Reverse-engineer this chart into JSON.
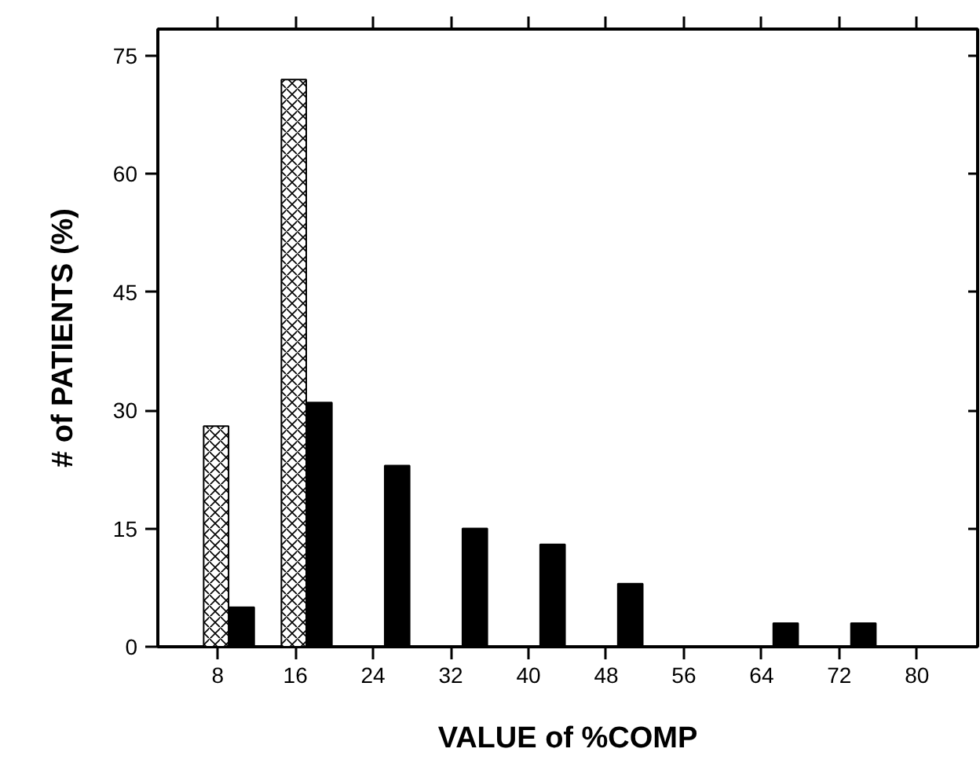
{
  "chart_data": {
    "type": "bar",
    "xlabel": "VALUE of %COMP",
    "ylabel": "# of PATIENTS (%)",
    "categories": [
      "8",
      "16",
      "24",
      "32",
      "40",
      "48",
      "56",
      "64",
      "72",
      "80"
    ],
    "series": [
      {
        "color": "#ffffff",
        "values": [
          28,
          72,
          null,
          null,
          null,
          null,
          null,
          null,
          null,
          null
        ]
      },
      {
        "color": "#000000",
        "values": [
          5,
          31,
          23,
          15,
          13,
          8,
          0,
          3,
          3,
          0
        ]
      }
    ],
    "ylim": [
      0,
      78.4
    ],
    "yticks": [
      0,
      15,
      30,
      45,
      60,
      75
    ],
    "grid": false
  }
}
